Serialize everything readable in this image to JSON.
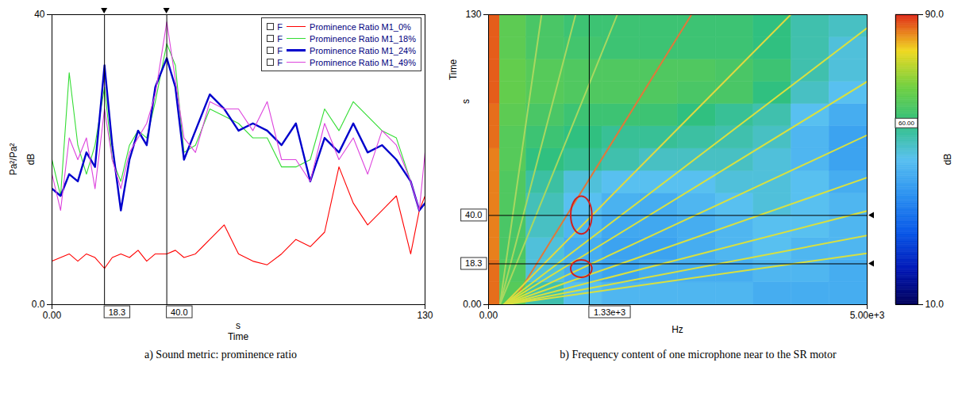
{
  "chart_data": [
    {
      "type": "line",
      "caption": "a) Sound metric: prominence ratio",
      "ylabel": "Pa²/Pa²",
      "yunit": "dB",
      "xlabel": "Time",
      "xunit": "s",
      "xlim": [
        0,
        130
      ],
      "ylim": [
        0,
        40
      ],
      "xticks": [
        {
          "value": 0,
          "label": "0.00"
        },
        130
      ],
      "yticks": [
        {
          "value": 0,
          "label": "0.0"
        },
        40
      ],
      "grid": false,
      "legend": "top-right",
      "legend_prefix": "F",
      "cursors": [
        {
          "value": 18.3,
          "label": "18.3"
        },
        {
          "value": 40,
          "label": "40.0"
        }
      ],
      "x": [
        0,
        3,
        6,
        9,
        12,
        15,
        18.3,
        21,
        24,
        27,
        30,
        33,
        36,
        40,
        43,
        46,
        50,
        55,
        60,
        65,
        70,
        75,
        80,
        85,
        90,
        95,
        100,
        105,
        110,
        115,
        120,
        125,
        128,
        130
      ],
      "series": [
        {
          "name": "Prominence Ratio M1_0%",
          "color": "#ff0000",
          "line_style": "solid",
          "values": [
            6,
            6.5,
            7,
            6,
            7,
            6.5,
            5,
            6.5,
            7,
            6.5,
            7.5,
            6,
            7,
            7,
            7.5,
            6.5,
            7,
            9,
            11,
            7,
            6,
            5.5,
            7,
            9,
            8,
            10,
            19,
            14,
            11,
            13,
            15,
            7,
            13,
            15
          ]
        },
        {
          "name": "Prominence Ratio M1_18%",
          "color": "#33dd33",
          "line_style": "solid",
          "values": [
            20,
            15,
            32,
            22,
            18,
            22,
            30,
            20,
            17,
            22,
            24,
            23,
            28,
            36,
            33,
            21,
            22,
            27,
            26,
            25,
            23,
            23,
            19,
            19,
            20,
            27,
            24,
            28,
            26,
            24,
            23,
            17,
            13,
            14
          ]
        },
        {
          "name": "Prominence Ratio M1_24%",
          "color": "#0000cc",
          "line_style": "thick",
          "values": [
            16,
            15,
            18,
            17,
            21,
            19,
            33,
            22,
            13,
            20,
            24,
            22,
            30,
            34,
            30,
            20,
            24,
            29,
            27,
            24,
            25,
            24,
            22,
            25,
            17,
            23,
            21,
            25,
            21,
            22,
            20,
            17,
            13,
            14
          ]
        },
        {
          "name": "Prominence Ratio M1_49%",
          "color": "#dd44dd",
          "line_style": "solid",
          "values": [
            18,
            13,
            23,
            20,
            23,
            16,
            27,
            20,
            16,
            21,
            23,
            25,
            29,
            39,
            31,
            23,
            21,
            28,
            27,
            27,
            24,
            28,
            20,
            20,
            17,
            25,
            20,
            23,
            18,
            24,
            22,
            17,
            13,
            21
          ]
        }
      ]
    },
    {
      "type": "heatmap",
      "caption": "b) Frequency content of one microphone near to the SR motor",
      "xlabel": "Hz",
      "ylabel": "Time",
      "yunit": "s",
      "xlim": [
        0,
        5000
      ],
      "ylim": [
        0,
        130
      ],
      "xticks": [
        {
          "value": 0,
          "label": "0.00"
        },
        {
          "value": 5000,
          "label": "5.00e+3"
        }
      ],
      "yticks": [
        {
          "value": 0,
          "label": "0.00"
        },
        130
      ],
      "grid": false,
      "cursors_x": [
        {
          "value": 1330,
          "label": "1.33e+3"
        }
      ],
      "cursors_y": [
        {
          "value": 40,
          "label": "40.0"
        },
        {
          "value": 18.3,
          "label": "18.3"
        }
      ],
      "x_edges": [
        0,
        150,
        500,
        1000,
        1500,
        2000,
        2500,
        3000,
        3500,
        4000,
        4500,
        5000
      ],
      "y_edges": [
        0,
        10,
        20,
        30,
        40,
        50,
        60,
        70,
        80,
        90,
        100,
        110,
        120,
        130
      ],
      "cells": [
        [
          86,
          66,
          56,
          50,
          48,
          48,
          48,
          48,
          46,
          46,
          46
        ],
        [
          86,
          65,
          52,
          46,
          44,
          46,
          46,
          46,
          48,
          48,
          46
        ],
        [
          85,
          64,
          52,
          46,
          44,
          44,
          46,
          48,
          50,
          48,
          48
        ],
        [
          85,
          64,
          54,
          48,
          45,
          45,
          46,
          48,
          50,
          50,
          48
        ],
        [
          85,
          65,
          55,
          50,
          47,
          46,
          48,
          50,
          52,
          50,
          48
        ],
        [
          85,
          65,
          57,
          52,
          50,
          50,
          50,
          52,
          52,
          50,
          46
        ],
        [
          85,
          66,
          60,
          58,
          56,
          54,
          54,
          54,
          52,
          48,
          44
        ],
        [
          86,
          66,
          62,
          60,
          58,
          58,
          57,
          56,
          54,
          48,
          44
        ],
        [
          86,
          67,
          64,
          62,
          62,
          62,
          60,
          58,
          56,
          50,
          46
        ],
        [
          87,
          68,
          66,
          65,
          65,
          65,
          64,
          64,
          60,
          54,
          50
        ],
        [
          87,
          68,
          66,
          65,
          65,
          65,
          65,
          64,
          62,
          56,
          52
        ],
        [
          87,
          67,
          64,
          63,
          62,
          62,
          62,
          62,
          60,
          56,
          52
        ],
        [
          87,
          67,
          64,
          62,
          62,
          62,
          62,
          62,
          60,
          56,
          54
        ]
      ],
      "colorbar": {
        "label": "dB",
        "range": [
          10,
          90
        ],
        "ticks": [
          {
            "value": 10,
            "label": "10.0"
          },
          {
            "value": 90,
            "label": "90.0"
          }
        ],
        "marker": {
          "value": 60,
          "label": "60.00"
        }
      },
      "order_lines": [
        {
          "color": "#a8d860",
          "x": [
            150,
            700
          ],
          "y": [
            0,
            130
          ]
        },
        {
          "color": "#a8d860",
          "x": [
            150,
            1150
          ],
          "y": [
            0,
            130
          ]
        },
        {
          "color": "#a8d860",
          "x": [
            150,
            1700
          ],
          "y": [
            0,
            130
          ]
        },
        {
          "color": "#e0783a",
          "x": [
            300,
            2680
          ],
          "y": [
            0,
            130
          ]
        },
        {
          "color": "#e0d840",
          "x": [
            200,
            3990
          ],
          "y": [
            0,
            130
          ]
        },
        {
          "color": "#d8e040",
          "x": [
            200,
            5000
          ],
          "y": [
            0,
            124
          ]
        },
        {
          "color": "#d8e040",
          "x": [
            200,
            5000
          ],
          "y": [
            0,
            100
          ]
        },
        {
          "color": "#d8e040",
          "x": [
            200,
            5000
          ],
          "y": [
            0,
            76
          ]
        },
        {
          "color": "#d8e040",
          "x": [
            200,
            5000
          ],
          "y": [
            0,
            57
          ]
        },
        {
          "color": "#d8e040",
          "x": [
            200,
            5000
          ],
          "y": [
            0,
            42
          ]
        },
        {
          "color": "#d8e040",
          "x": [
            200,
            5000
          ],
          "y": [
            0,
            31
          ]
        },
        {
          "color": "#d8e040",
          "x": [
            200,
            5000
          ],
          "y": [
            0,
            23
          ]
        }
      ],
      "highlights": {
        "color": "#d02020",
        "shapes": [
          {
            "x": 1230,
            "y": 40,
            "rx": 140,
            "ry": 8.5
          },
          {
            "x": 1230,
            "y": 16,
            "rx": 140,
            "ry": 3.9
          }
        ]
      }
    }
  ]
}
